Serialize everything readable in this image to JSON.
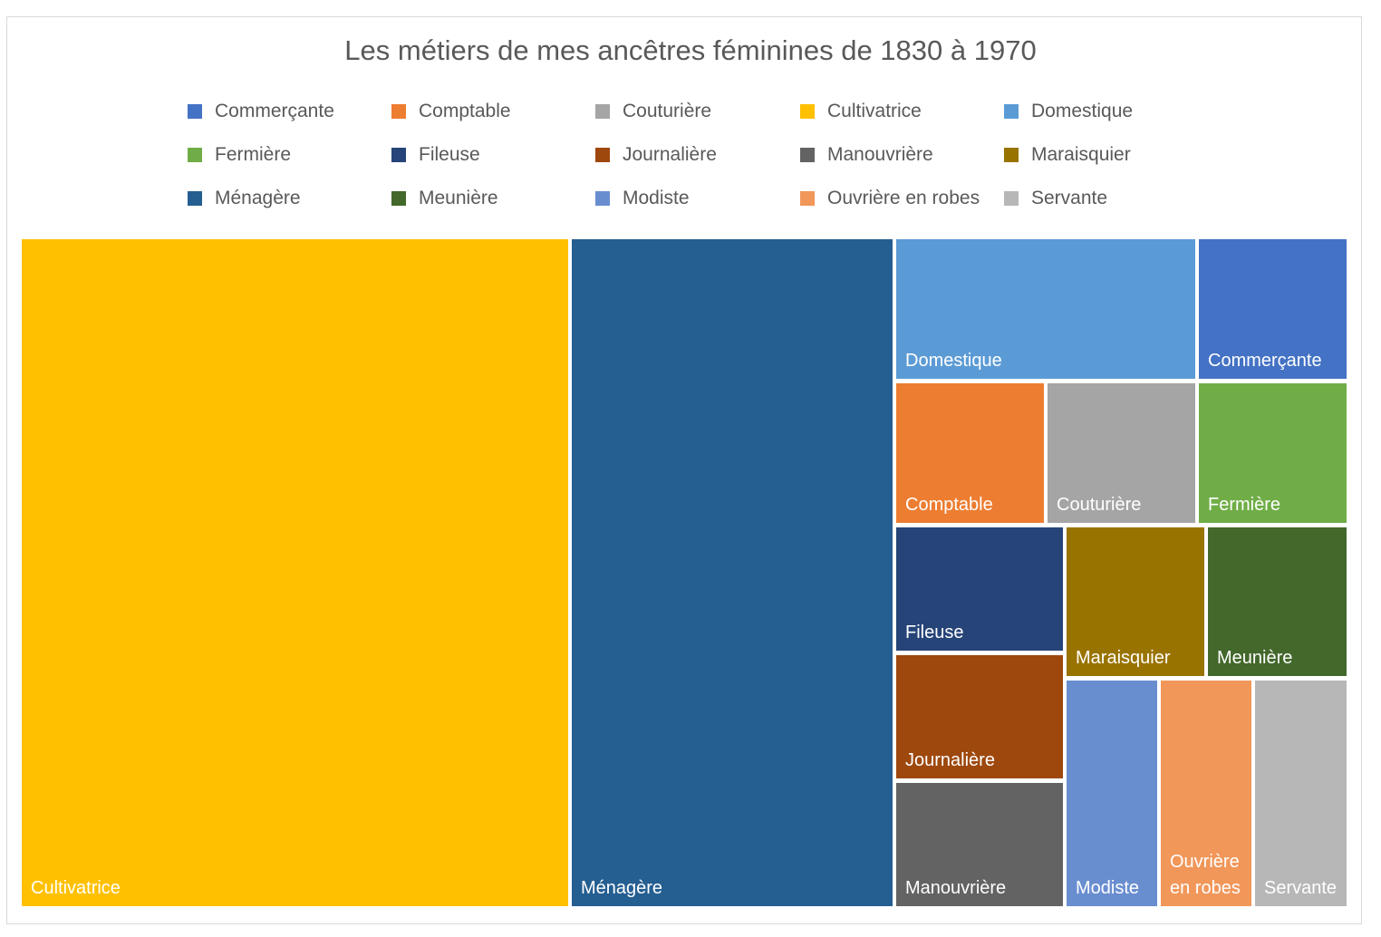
{
  "chart_data": {
    "type": "treemap",
    "title": "Les métiers de mes ancêtres féminines de 1830 à 1970",
    "legend_position": "top",
    "items": [
      {
        "name": "Commerçante",
        "color": "#4472C4"
      },
      {
        "name": "Comptable",
        "color": "#ED7D31"
      },
      {
        "name": "Couturière",
        "color": "#A5A5A5"
      },
      {
        "name": "Cultivatrice",
        "color": "#FFC000"
      },
      {
        "name": "Domestique",
        "color": "#5B9BD5"
      },
      {
        "name": "Fermière",
        "color": "#70AD47"
      },
      {
        "name": "Fileuse",
        "color": "#264478"
      },
      {
        "name": "Journalière",
        "color": "#9E480E"
      },
      {
        "name": "Manouvrière",
        "color": "#636363"
      },
      {
        "name": "Maraisquier",
        "color": "#997300"
      },
      {
        "name": "Ménagère",
        "color": "#255E91"
      },
      {
        "name": "Meunière",
        "color": "#43682B"
      },
      {
        "name": "Modiste",
        "color": "#698ED0"
      },
      {
        "name": "Ouvrière en robes",
        "color": "#F1975A"
      },
      {
        "name": "Servante",
        "color": "#B7B7B7"
      }
    ],
    "cells": [
      {
        "name": "Cultivatrice",
        "label_lines": [
          "Cultivatrice"
        ],
        "color": "#FFC000"
      },
      {
        "name": "Ménagère",
        "label_lines": [
          "Ménagère"
        ],
        "color": "#255E91"
      },
      {
        "name": "Domestique",
        "label_lines": [
          "Domestique"
        ],
        "color": "#5B9BD5"
      },
      {
        "name": "Commerçante",
        "label_lines": [
          "Commerçante"
        ],
        "color": "#4472C4"
      },
      {
        "name": "Comptable",
        "label_lines": [
          "Comptable"
        ],
        "color": "#ED7D31"
      },
      {
        "name": "Couturière",
        "label_lines": [
          "Couturière"
        ],
        "color": "#A5A5A5"
      },
      {
        "name": "Fermière",
        "label_lines": [
          "Fermière"
        ],
        "color": "#70AD47"
      },
      {
        "name": "Fileuse",
        "label_lines": [
          "Fileuse"
        ],
        "color": "#264478"
      },
      {
        "name": "Journalière",
        "label_lines": [
          "Journalière"
        ],
        "color": "#9E480E"
      },
      {
        "name": "Manouvrière",
        "label_lines": [
          "Manouvrière"
        ],
        "color": "#636363"
      },
      {
        "name": "Maraisquier",
        "label_lines": [
          "Maraisquier"
        ],
        "color": "#997300"
      },
      {
        "name": "Meunière",
        "label_lines": [
          "Meunière"
        ],
        "color": "#43682B"
      },
      {
        "name": "Modiste",
        "label_lines": [
          "Modiste"
        ],
        "color": "#698ED0"
      },
      {
        "name": "Ouvrière en robes",
        "label_lines": [
          "Ouvrière",
          "en robes"
        ],
        "color": "#F1975A"
      },
      {
        "name": "Servante",
        "label_lines": [
          "Servante"
        ],
        "color": "#B7B7B7"
      }
    ]
  }
}
